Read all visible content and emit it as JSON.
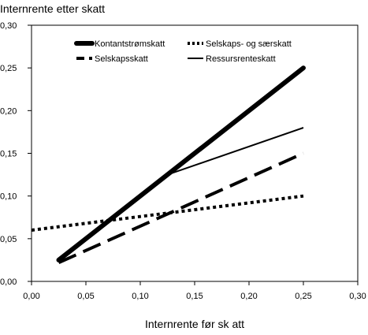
{
  "chart_data": {
    "type": "line",
    "title": "",
    "ylabel": "Internrente etter skatt",
    "xlabel": "Internrente før sk att",
    "xlim": [
      0,
      0.3
    ],
    "ylim": [
      0,
      0.3
    ],
    "grid": false,
    "legend_position": "top",
    "x_ticks": [
      "0,00",
      "0,05",
      "0,10",
      "0,15",
      "0,20",
      "0,25",
      "0,30"
    ],
    "y_ticks": [
      "0,00",
      "0,05",
      "0,10",
      "0,15",
      "0,20",
      "0,25",
      "0,30"
    ],
    "series": [
      {
        "name": "Kontantstrømskatt",
        "line_style": "thick-solid",
        "points": [
          [
            0.025,
            0.025
          ],
          [
            0.25,
            0.25
          ]
        ]
      },
      {
        "name": "Selskaps- og særskatt",
        "line_style": "dotted",
        "points": [
          [
            0.0,
            0.06
          ],
          [
            0.25,
            0.1
          ]
        ]
      },
      {
        "name": "Selskapsskatt",
        "line_style": "dashed",
        "points": [
          [
            0.025,
            0.022
          ],
          [
            0.25,
            0.15
          ]
        ]
      },
      {
        "name": "Ressursrenteskatt",
        "line_style": "thin-solid",
        "points": [
          [
            0.025,
            0.025
          ],
          [
            0.125,
            0.125
          ],
          [
            0.25,
            0.18
          ]
        ]
      }
    ]
  }
}
